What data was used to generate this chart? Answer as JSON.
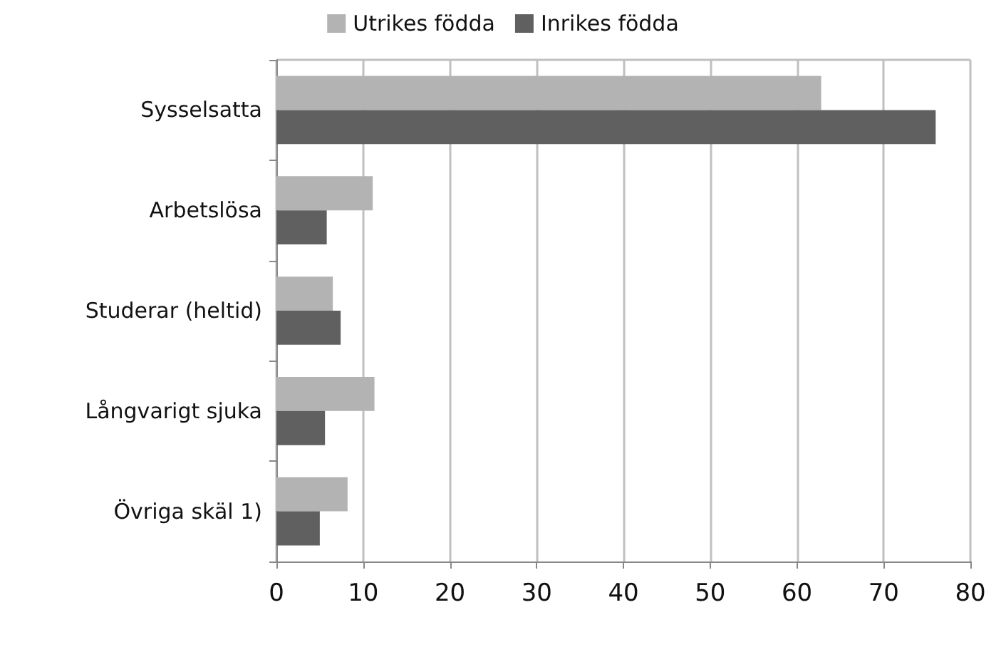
{
  "chart_data": {
    "type": "bar",
    "orientation": "horizontal",
    "categories": [
      "Sysselsatta",
      "Arbetslösa",
      "Studerar (heltid)",
      "Långvarigt sjuka",
      "Övriga skäl 1)"
    ],
    "series": [
      {
        "name": "Utrikes födda",
        "color": "#b3b3b3",
        "values": [
          62.8,
          11.1,
          6.5,
          11.3,
          8.2
        ]
      },
      {
        "name": "Inrikes födda",
        "color": "#606060",
        "values": [
          76.0,
          5.8,
          7.4,
          5.6,
          5.0
        ]
      }
    ],
    "xlim": [
      0,
      80
    ],
    "xticks": [
      0,
      10,
      20,
      30,
      40,
      50,
      60,
      70,
      80
    ],
    "grid": "x",
    "legend": "top"
  }
}
